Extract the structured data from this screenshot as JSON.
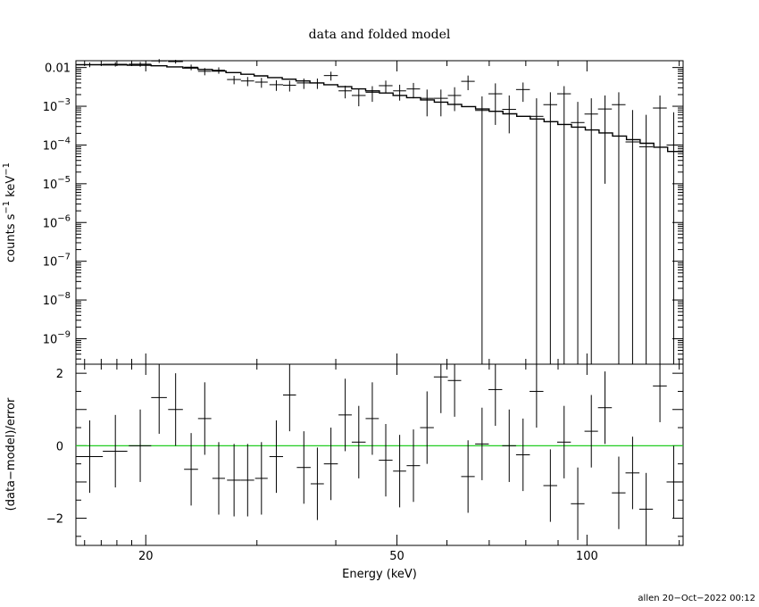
{
  "chart_data": [
    {
      "type": "scatter",
      "title": "data and folded model",
      "ylabel_parts": {
        "base": "counts s",
        "exp1": "−1",
        "mid": " keV",
        "exp2": "−1"
      },
      "xlabel": "",
      "x_scale": "log",
      "y_scale": "log",
      "xlim": [
        15.5,
        142
      ],
      "ylim": [
        2.2e-10,
        0.015
      ],
      "y_tick_labels": [
        {
          "value": 0.01,
          "text": "0.01"
        },
        {
          "value": 0.001,
          "base": "10",
          "exp": "−3"
        },
        {
          "value": 0.0001,
          "base": "10",
          "exp": "−4"
        },
        {
          "value": 1e-05,
          "base": "10",
          "exp": "−5"
        },
        {
          "value": 1e-06,
          "base": "10",
          "exp": "−6"
        },
        {
          "value": 1e-07,
          "base": "10",
          "exp": "−7"
        },
        {
          "value": 1e-08,
          "base": "10",
          "exp": "−8"
        },
        {
          "value": 1e-09,
          "base": "10",
          "exp": "−9"
        }
      ],
      "series": [
        {
          "kind": "data",
          "points": [
            {
              "x": 16.3,
              "dx": 0.8,
              "y": 0.0118,
              "ylo": 0.0102,
              "yhi": 0.0134
            },
            {
              "x": 17.9,
              "dx": 0.8,
              "y": 0.0121,
              "ylo": 0.0106,
              "yhi": 0.0137
            },
            {
              "x": 19.6,
              "dx": 0.8,
              "y": 0.0122,
              "ylo": 0.0105,
              "yhi": 0.0139
            },
            {
              "x": 21.0,
              "dx": 0.6,
              "y": 0.0148,
              "ylo": 0.0131,
              "yhi": 0.0165
            },
            {
              "x": 22.3,
              "dx": 0.6,
              "y": 0.0142,
              "ylo": 0.0126,
              "yhi": 0.0158
            },
            {
              "x": 23.6,
              "dx": 0.6,
              "y": 0.0102,
              "ylo": 0.0085,
              "yhi": 0.0119
            },
            {
              "x": 24.8,
              "dx": 0.6,
              "y": 0.008,
              "ylo": 0.0063,
              "yhi": 0.0097
            },
            {
              "x": 26.1,
              "dx": 0.6,
              "y": 0.0085,
              "ylo": 0.0069,
              "yhi": 0.0101
            },
            {
              "x": 27.6,
              "dx": 0.7,
              "y": 0.0049,
              "ylo": 0.0037,
              "yhi": 0.0061
            },
            {
              "x": 29.0,
              "dx": 0.7,
              "y": 0.0045,
              "ylo": 0.0033,
              "yhi": 0.0057
            },
            {
              "x": 30.5,
              "dx": 0.7,
              "y": 0.0042,
              "ylo": 0.003,
              "yhi": 0.0054
            },
            {
              "x": 32.2,
              "dx": 0.8,
              "y": 0.0036,
              "ylo": 0.0025,
              "yhi": 0.0047
            },
            {
              "x": 33.8,
              "dx": 0.8,
              "y": 0.0035,
              "ylo": 0.0024,
              "yhi": 0.0046
            },
            {
              "x": 35.6,
              "dx": 0.9,
              "y": 0.004,
              "ylo": 0.0028,
              "yhi": 0.0052
            },
            {
              "x": 37.4,
              "dx": 0.9,
              "y": 0.004,
              "ylo": 0.0028,
              "yhi": 0.0052
            },
            {
              "x": 39.3,
              "dx": 1.0,
              "y": 0.0062,
              "ylo": 0.0046,
              "yhi": 0.0078
            },
            {
              "x": 41.4,
              "dx": 1.0,
              "y": 0.0025,
              "ylo": 0.0016,
              "yhi": 0.0034
            },
            {
              "x": 43.5,
              "dx": 1.1,
              "y": 0.0019,
              "ylo": 0.001,
              "yhi": 0.0028
            },
            {
              "x": 45.7,
              "dx": 1.1,
              "y": 0.0023,
              "ylo": 0.0013,
              "yhi": 0.0033
            },
            {
              "x": 48.0,
              "dx": 1.2,
              "y": 0.0034,
              "ylo": 0.0022,
              "yhi": 0.0046
            },
            {
              "x": 50.5,
              "dx": 1.2,
              "y": 0.0025,
              "ylo": 0.0014,
              "yhi": 0.0036
            },
            {
              "x": 53.1,
              "dx": 1.3,
              "y": 0.0028,
              "ylo": 0.0016,
              "yhi": 0.004
            },
            {
              "x": 55.8,
              "dx": 1.4,
              "y": 0.0016,
              "ylo": 0.00055,
              "yhi": 0.0027
            },
            {
              "x": 58.7,
              "dx": 1.5,
              "y": 0.0016,
              "ylo": 0.00055,
              "yhi": 0.0027
            },
            {
              "x": 61.7,
              "dx": 1.5,
              "y": 0.0019,
              "ylo": 0.00075,
              "yhi": 0.0031
            },
            {
              "x": 64.8,
              "dx": 1.6,
              "y": 0.0044,
              "ylo": 0.0026,
              "yhi": 0.0062
            },
            {
              "x": 68.2,
              "dx": 1.7,
              "y": 0.00078,
              "ylo": 2.2e-10,
              "yhi": 0.0018
            },
            {
              "x": 71.6,
              "dx": 1.8,
              "y": 0.0021,
              "ylo": 0.00033,
              "yhi": 0.0039
            },
            {
              "x": 75.3,
              "dx": 1.9,
              "y": 0.00083,
              "ylo": 0.0002,
              "yhi": 0.0019
            },
            {
              "x": 79.2,
              "dx": 2.0,
              "y": 0.0027,
              "ylo": 0.0013,
              "yhi": 0.0041
            },
            {
              "x": 83.2,
              "dx": 2.1,
              "y": 0.00055,
              "ylo": 2.2e-10,
              "yhi": 0.0016
            },
            {
              "x": 87.5,
              "dx": 2.2,
              "y": 0.0011,
              "ylo": 2.2e-10,
              "yhi": 0.0023
            },
            {
              "x": 92.0,
              "dx": 2.3,
              "y": 0.0021,
              "ylo": 2.2e-10,
              "yhi": 0.0033
            },
            {
              "x": 96.7,
              "dx": 2.4,
              "y": 0.00038,
              "ylo": 2.2e-10,
              "yhi": 0.0013
            },
            {
              "x": 101.6,
              "dx": 2.5,
              "y": 0.00063,
              "ylo": 2.2e-10,
              "yhi": 0.0016
            },
            {
              "x": 106.8,
              "dx": 2.7,
              "y": 0.00085,
              "ylo": 1e-05,
              "yhi": 0.0019
            },
            {
              "x": 112.3,
              "dx": 2.8,
              "y": 0.0011,
              "ylo": 2.2e-10,
              "yhi": 0.0023
            },
            {
              "x": 118.1,
              "dx": 3.0,
              "y": 0.00012,
              "ylo": 2.2e-10,
              "yhi": 0.0008
            },
            {
              "x": 124.1,
              "dx": 3.1,
              "y": 9e-05,
              "ylo": 2.2e-10,
              "yhi": 0.0006
            },
            {
              "x": 130.5,
              "dx": 3.3,
              "y": 0.0009,
              "ylo": 2.2e-10,
              "yhi": 0.0019
            },
            {
              "x": 137.2,
              "dx": 3.5,
              "y": 0.0001,
              "ylo": 2.2e-10,
              "yhi": 0.0007
            }
          ]
        },
        {
          "kind": "model",
          "edges": [
            15.5,
            17.1,
            18.7,
            20.4,
            21.6,
            22.9,
            24.2,
            25.5,
            26.8,
            28.3,
            29.7,
            31.2,
            32.9,
            34.6,
            36.4,
            38.3,
            40.3,
            42.4,
            44.6,
            46.9,
            49.3,
            51.8,
            54.5,
            57.3,
            60.2,
            63.3,
            66.6,
            70.0,
            73.6,
            77.4,
            81.3,
            85.5,
            89.9,
            94.5,
            99.4,
            104.5,
            109.8,
            115.5,
            121.4,
            127.6,
            134.2,
            142.0
          ],
          "values": [
            0.0118,
            0.0117,
            0.0115,
            0.0111,
            0.0104,
            0.0097,
            0.0089,
            0.0081,
            0.0074,
            0.0067,
            0.0061,
            0.0055,
            0.005,
            0.0045,
            0.004,
            0.0036,
            0.0032,
            0.0028,
            0.0025,
            0.0022,
            0.0019,
            0.00167,
            0.00146,
            0.00128,
            0.00112,
            0.00098,
            0.00085,
            0.00074,
            0.00064,
            0.00055,
            0.00047,
            0.0004,
            0.00034,
            0.00029,
            0.000245,
            0.000205,
            0.00017,
            0.000138,
            0.000111,
            8.8e-05,
            6.8e-05
          ]
        }
      ]
    },
    {
      "type": "scatter",
      "title": "",
      "ylabel": "(data−model)/error",
      "xlabel": "Energy (keV)",
      "x_scale": "log",
      "y_scale": "linear",
      "xlim": [
        15.5,
        142
      ],
      "ylim": [
        -2.75,
        2.25
      ],
      "y_tick_labels": [
        {
          "value": 2,
          "text": "2"
        },
        {
          "value": 0,
          "text": "0"
        },
        {
          "value": -2,
          "text": "−2"
        }
      ],
      "x_tick_labels": [
        {
          "value": 20,
          "text": "20"
        },
        {
          "value": 50,
          "text": "50"
        },
        {
          "value": 100,
          "text": "100"
        }
      ],
      "zero_line_color": "#22cc22",
      "series": [
        {
          "kind": "residuals",
          "points": [
            {
              "x": 16.3,
              "dx": 0.8,
              "y": -0.3,
              "dy": 1.0
            },
            {
              "x": 17.9,
              "dx": 0.8,
              "y": -0.15,
              "dy": 1.0
            },
            {
              "x": 19.6,
              "dx": 0.8,
              "y": 0.0,
              "dy": 1.0
            },
            {
              "x": 21.0,
              "dx": 0.6,
              "y": 1.33,
              "dy": 1.0
            },
            {
              "x": 22.3,
              "dx": 0.6,
              "y": 1.0,
              "dy": 1.0
            },
            {
              "x": 23.6,
              "dx": 0.6,
              "y": -0.65,
              "dy": 1.0
            },
            {
              "x": 24.8,
              "dx": 0.6,
              "y": 0.75,
              "dy": 1.0
            },
            {
              "x": 26.1,
              "dx": 0.6,
              "y": -0.9,
              "dy": 1.0
            },
            {
              "x": 27.6,
              "dx": 0.7,
              "y": -0.95,
              "dy": 1.0
            },
            {
              "x": 29.0,
              "dx": 0.7,
              "y": -0.95,
              "dy": 1.0
            },
            {
              "x": 30.5,
              "dx": 0.7,
              "y": -0.9,
              "dy": 1.0
            },
            {
              "x": 32.2,
              "dx": 0.8,
              "y": -0.3,
              "dy": 1.0
            },
            {
              "x": 33.8,
              "dx": 0.8,
              "y": 1.4,
              "dy": 1.0
            },
            {
              "x": 35.6,
              "dx": 0.9,
              "y": -0.6,
              "dy": 1.0
            },
            {
              "x": 37.4,
              "dx": 0.9,
              "y": -1.05,
              "dy": 1.0
            },
            {
              "x": 39.3,
              "dx": 1.0,
              "y": -0.5,
              "dy": 1.0
            },
            {
              "x": 41.4,
              "dx": 1.0,
              "y": 0.85,
              "dy": 1.0
            },
            {
              "x": 43.5,
              "dx": 1.1,
              "y": 0.1,
              "dy": 1.0
            },
            {
              "x": 45.7,
              "dx": 1.1,
              "y": 0.75,
              "dy": 1.0
            },
            {
              "x": 48.0,
              "dx": 1.2,
              "y": -0.4,
              "dy": 1.0
            },
            {
              "x": 50.5,
              "dx": 1.2,
              "y": -0.7,
              "dy": 1.0
            },
            {
              "x": 53.1,
              "dx": 1.3,
              "y": -0.55,
              "dy": 1.0
            },
            {
              "x": 55.8,
              "dx": 1.4,
              "y": 0.5,
              "dy": 1.0
            },
            {
              "x": 58.7,
              "dx": 1.5,
              "y": 1.9,
              "dy": 1.0
            },
            {
              "x": 61.7,
              "dx": 1.5,
              "y": 1.8,
              "dy": 1.0
            },
            {
              "x": 64.8,
              "dx": 1.6,
              "y": -0.85,
              "dy": 1.0
            },
            {
              "x": 68.2,
              "dx": 1.7,
              "y": 0.05,
              "dy": 1.0
            },
            {
              "x": 71.6,
              "dx": 1.8,
              "y": 1.55,
              "dy": 1.0
            },
            {
              "x": 75.3,
              "dx": 1.9,
              "y": 0.0,
              "dy": 1.0
            },
            {
              "x": 79.2,
              "dx": 2.0,
              "y": -0.25,
              "dy": 1.0
            },
            {
              "x": 83.2,
              "dx": 2.1,
              "y": 1.5,
              "dy": 1.0
            },
            {
              "x": 87.5,
              "dx": 2.2,
              "y": -1.1,
              "dy": 1.0
            },
            {
              "x": 92.0,
              "dx": 2.3,
              "y": 0.1,
              "dy": 1.0
            },
            {
              "x": 96.7,
              "dx": 2.4,
              "y": -1.6,
              "dy": 1.0
            },
            {
              "x": 101.6,
              "dx": 2.5,
              "y": 0.4,
              "dy": 1.0
            },
            {
              "x": 106.8,
              "dx": 2.7,
              "y": 1.05,
              "dy": 1.0
            },
            {
              "x": 112.3,
              "dx": 2.8,
              "y": -1.3,
              "dy": 1.0
            },
            {
              "x": 118.1,
              "dx": 3.0,
              "y": -0.75,
              "dy": 1.0
            },
            {
              "x": 124.1,
              "dx": 3.1,
              "y": -1.75,
              "dy": 1.0
            },
            {
              "x": 130.5,
              "dx": 3.3,
              "y": 1.65,
              "dy": 1.0
            },
            {
              "x": 137.2,
              "dx": 3.5,
              "y": -1.0,
              "dy": 1.0
            }
          ]
        }
      ]
    }
  ],
  "footer": "allen 20−Oct−2022 00:12"
}
